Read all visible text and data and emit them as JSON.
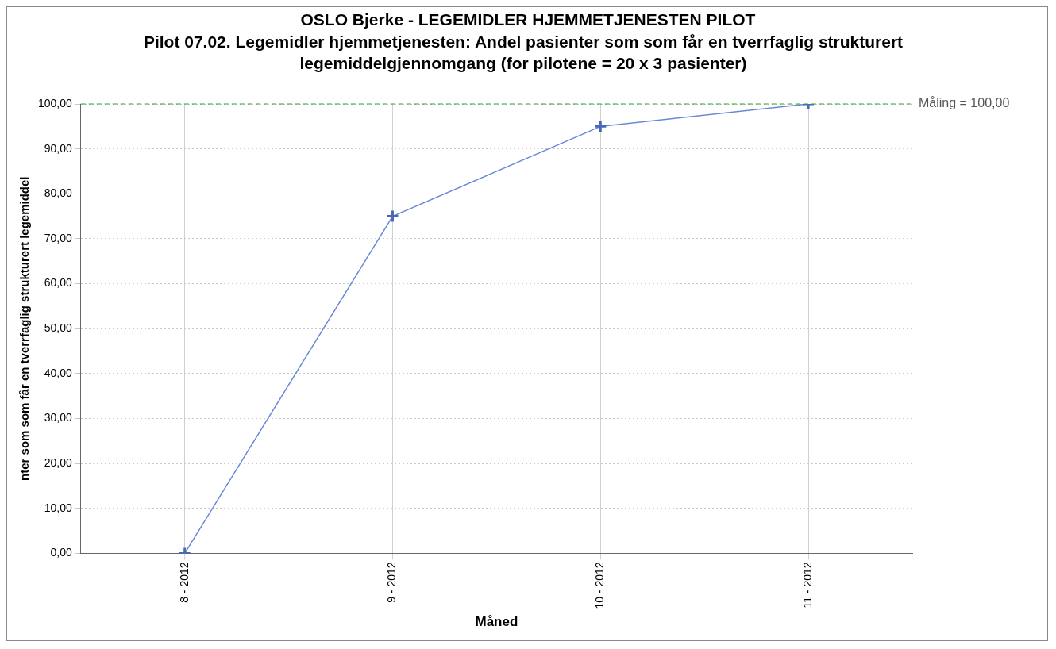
{
  "chart_data": {
    "type": "line",
    "title": "OSLO Bjerke - LEGEMIDLER HJEMMETJENESTEN PILOT",
    "subtitle": "Pilot 07.02. Legemidler hjemmetjenesten: Andel pasienter som som får en tverrfaglig strukturert legemiddelgjennomgang (for pilotene = 20 x 3  pasienter)",
    "xlabel": "Måned",
    "ylabel": "nter som som får en tverrfaglig strukturert legemiddel",
    "categories": [
      "8 - 2012",
      "9 - 2012",
      "10 - 2012",
      "11 - 2012"
    ],
    "series": [
      {
        "color": "#6a88d8",
        "values": [
          0,
          75,
          95,
          100
        ]
      }
    ],
    "ylim": [
      0,
      100
    ],
    "yticks": [
      {
        "value": 0,
        "label": "0,00"
      },
      {
        "value": 10,
        "label": "10,00"
      },
      {
        "value": 20,
        "label": "20,00"
      },
      {
        "value": 30,
        "label": "30,00"
      },
      {
        "value": 40,
        "label": "40,00"
      },
      {
        "value": 50,
        "label": "50,00"
      },
      {
        "value": 60,
        "label": "60,00"
      },
      {
        "value": 70,
        "label": "70,00"
      },
      {
        "value": 80,
        "label": "80,00"
      },
      {
        "value": 90,
        "label": "90,00"
      },
      {
        "value": 100,
        "label": "100,00"
      }
    ],
    "ref_lines": [
      {
        "axis": "y",
        "value": 100,
        "label": "Måling = 100,00",
        "color": "#2ca02c",
        "line_style": "dashed"
      }
    ],
    "grid": true,
    "legend": false,
    "marker": "cross",
    "line_style": "solid"
  }
}
